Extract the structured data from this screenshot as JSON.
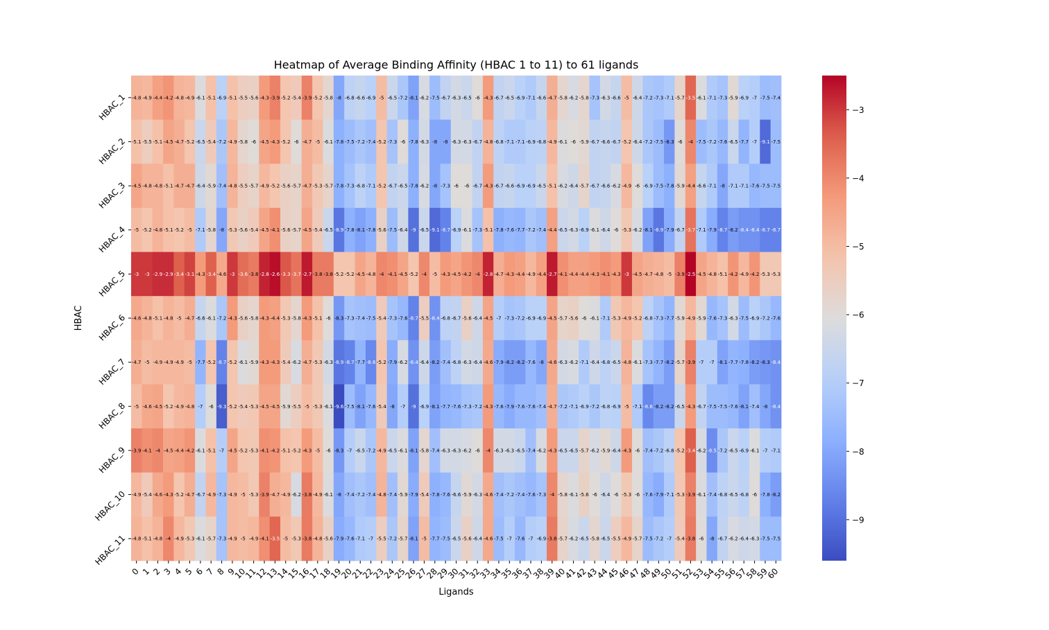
{
  "chart_data": {
    "type": "heatmap",
    "title": "Heatmap of Average Binding Affinity (HBAC 1 to 11) to 61 ligands",
    "xlabel": "Ligands",
    "ylabel": "HBAC",
    "rows": [
      "HBAC_1",
      "HBAC_2",
      "HBAC_3",
      "HBAC_4",
      "HBAC_5",
      "HBAC_6",
      "HBAC_7",
      "HBAC_8",
      "HBAC_9",
      "HBAC_10",
      "HBAC_11"
    ],
    "columns": [
      "0",
      "1",
      "2",
      "3",
      "4",
      "5",
      "6",
      "7",
      "8",
      "9",
      "10",
      "11",
      "12",
      "13",
      "14",
      "15",
      "16",
      "17",
      "18",
      "19",
      "20",
      "21",
      "22",
      "23",
      "24",
      "25",
      "26",
      "27",
      "28",
      "29",
      "30",
      "31",
      "32",
      "33",
      "34",
      "35",
      "36",
      "37",
      "38",
      "39",
      "40",
      "41",
      "42",
      "43",
      "44",
      "45",
      "46",
      "47",
      "48",
      "49",
      "50",
      "51",
      "52",
      "53",
      "54",
      "55",
      "56",
      "57",
      "58",
      "59",
      "60"
    ],
    "values": [
      [
        -4.8,
        -4.9,
        -4.4,
        -4.2,
        -4.8,
        -4.9,
        -6.1,
        -5.1,
        -6.9,
        -5.1,
        -5.5,
        -5.6,
        -4.3,
        -3.9,
        -5.2,
        -5.4,
        -3.9,
        -5.2,
        -5.8,
        -8,
        -6.8,
        -6.6,
        -6.9,
        -5,
        -6.5,
        -7.2,
        -8.1,
        -6.2,
        -7.5,
        -6.7,
        -6.3,
        -6.5,
        -6,
        -4.3,
        -6.7,
        -6.5,
        -6.9,
        -7.1,
        -6.6,
        -4.7,
        -5.8,
        -6.2,
        -5.8,
        -7.3,
        -6.3,
        -6.6,
        -5,
        -6.4,
        -7.2,
        -7.3,
        -7.1,
        -5.7,
        -3.5,
        -6.1,
        -7.1,
        -7.3,
        -5.9,
        -6.9,
        -7,
        -7.5,
        -7.4
      ],
      [
        -5.1,
        -5.5,
        -5.1,
        -4.5,
        -4.7,
        -5.2,
        -6.5,
        -5.4,
        -7.2,
        -4.9,
        -5.8,
        -6,
        -4.5,
        -4.3,
        -5.2,
        -6,
        -4.7,
        -5,
        -6.1,
        -7.8,
        -7.5,
        -7.2,
        -7.4,
        -5.2,
        -7.3,
        -6,
        -7.8,
        -6.3,
        -8,
        -8,
        -6.3,
        -6.3,
        -6.7,
        -4.8,
        -6.8,
        -7.1,
        -7.1,
        -6.9,
        -6.8,
        -4.9,
        -6.1,
        -6,
        -5.9,
        -6.7,
        -6.6,
        -6.7,
        -5.2,
        -6.4,
        -7.2,
        -7.5,
        -8.3,
        -6,
        -4,
        -7.5,
        -7.2,
        -7.6,
        -6.5,
        -7.7,
        -7,
        -9.1,
        -7.5
      ],
      [
        -4.5,
        -4.8,
        -4.8,
        -5.1,
        -4.7,
        -4.7,
        -6.4,
        -5.9,
        -7.4,
        -4.8,
        -5.5,
        -5.7,
        -4.9,
        -5.2,
        -5.6,
        -5.7,
        -4.7,
        -5.3,
        -5.7,
        -7.8,
        -7.3,
        -6.8,
        -7.1,
        -5.2,
        -6.7,
        -6.5,
        -7.8,
        -6.2,
        -8,
        -7.3,
        -6,
        -6,
        -6.7,
        -4.3,
        -6.7,
        -6.6,
        -6.9,
        -6.9,
        -6.5,
        -5.1,
        -6.2,
        -6.4,
        -5.7,
        -6.7,
        -6.6,
        -6.2,
        -4.9,
        -6,
        -6.9,
        -7.5,
        -7.8,
        -5.9,
        -4.4,
        -6.6,
        -7.1,
        -8,
        -7.1,
        -7.1,
        -7.6,
        -7.5,
        -7.5
      ],
      [
        -5,
        -5.2,
        -4.8,
        -5.1,
        -5.2,
        -5,
        -7.1,
        -5.8,
        -8,
        -5.3,
        -5.6,
        -5.4,
        -4.5,
        -4.1,
        -5.6,
        -5.7,
        -4.5,
        -5.4,
        -6.5,
        -8.9,
        -7.8,
        -8.1,
        -7.8,
        -5.6,
        -7.5,
        -6.4,
        -9,
        -6.5,
        -9.1,
        -8.7,
        -6.9,
        -6.1,
        -7.3,
        -5.1,
        -7.8,
        -7.6,
        -7.7,
        -7.2,
        -7.4,
        -4.4,
        -6.5,
        -6.3,
        -6.9,
        -6.1,
        -6.4,
        -6,
        -5.3,
        -6.2,
        -8.1,
        -8.9,
        -7.9,
        -6.7,
        -3.7,
        -7.1,
        -7.9,
        -8.7,
        -8.2,
        -8.4,
        -8.4,
        -8.7,
        -8.7
      ],
      [
        -3,
        -3,
        -2.9,
        -2.9,
        -3.4,
        -3.1,
        -4.3,
        -3.4,
        -4.6,
        -3,
        -3.6,
        -3.8,
        -2.8,
        -2.6,
        -3.3,
        -3.7,
        -2.7,
        -3.8,
        -3.8,
        -5.2,
        -5.2,
        -4.5,
        -4.8,
        -4,
        -4.1,
        -4.5,
        -5.2,
        -4,
        -5,
        -4.3,
        -4.5,
        -4.2,
        -4,
        -2.8,
        -4.7,
        -4.3,
        -4.4,
        -4.9,
        -4.4,
        -2.7,
        -4.1,
        -4.4,
        -4.4,
        -4.3,
        -4.1,
        -4.3,
        -3,
        -4.5,
        -4.7,
        -4.8,
        -5,
        -3.9,
        -2.5,
        -4.5,
        -4.8,
        -5.1,
        -4.2,
        -4.9,
        -4.2,
        -5.3,
        -5.3
      ],
      [
        -4.6,
        -4.8,
        -5.1,
        -4.8,
        -5,
        -4.7,
        -6.6,
        -6.1,
        -7.2,
        -4.3,
        -5.6,
        -5.8,
        -4.3,
        -4.4,
        -5.3,
        -5.8,
        -4.3,
        -5.1,
        -6,
        -8.3,
        -7.3,
        -7.4,
        -7.5,
        -5.4,
        -7.3,
        -7.6,
        -8.7,
        -5.5,
        -8.4,
        -6.8,
        -6.7,
        -5.6,
        -6.4,
        -4.5,
        -7,
        -7.3,
        -7.2,
        -6.9,
        -6.9,
        -4.5,
        -5.7,
        -5.6,
        -6,
        -6.1,
        -7.1,
        -5.3,
        -4.9,
        -5.2,
        -6.8,
        -7.3,
        -7.7,
        -5.9,
        -4.9,
        -5.9,
        -7.6,
        -7.3,
        -6.3,
        -7.5,
        -6.9,
        -7.2,
        -7.6
      ],
      [
        -4.7,
        -5,
        -4.9,
        -4.9,
        -4.9,
        -5,
        -7.7,
        -5.2,
        -8.7,
        -5.2,
        -6.1,
        -5.9,
        -4.3,
        -4.3,
        -5.4,
        -6.2,
        -4.7,
        -5.3,
        -6.3,
        -8.9,
        -8.7,
        -7.7,
        -8.6,
        -5.2,
        -7.9,
        -6.2,
        -8.4,
        -6.4,
        -8.2,
        -7.4,
        -6.8,
        -6.3,
        -6.4,
        -4.6,
        -7.9,
        -8.2,
        -8.2,
        -7.6,
        -8,
        -4.6,
        -6.3,
        -6.2,
        -7.1,
        -6.4,
        -6.8,
        -6.5,
        -4.8,
        -6.1,
        -7.3,
        -7.7,
        -8.2,
        -5.7,
        -3.9,
        -7,
        -7,
        -8.1,
        -7.7,
        -7.8,
        -8.2,
        -8.3,
        -8.4
      ],
      [
        -5,
        -4.6,
        -4.5,
        -5.2,
        -4.9,
        -4.8,
        -7,
        -6,
        -9.3,
        -5.2,
        -5.4,
        -5.3,
        -4.5,
        -4.5,
        -5.9,
        -5.5,
        -5,
        -5.3,
        -6.1,
        -9.6,
        -7.5,
        -8.1,
        -7.6,
        -5.4,
        -8,
        -7,
        -9,
        -6.9,
        -8.1,
        -7.7,
        -7.6,
        -7.3,
        -7.2,
        -4.3,
        -7.6,
        -7.9,
        -7.6,
        -7.6,
        -7.4,
        -4.7,
        -7.2,
        -7.1,
        -6.9,
        -7.2,
        -6.8,
        -6.9,
        -5,
        -7.1,
        -8.6,
        -8.2,
        -8.2,
        -6.5,
        -4.3,
        -6.7,
        -7.5,
        -7.5,
        -7.6,
        -8.1,
        -7.4,
        -8,
        -8.4
      ],
      [
        -3.9,
        -4.1,
        -4,
        -4.5,
        -4.4,
        -4.2,
        -6.1,
        -5.1,
        -7,
        -4.5,
        -5.2,
        -5.3,
        -4.1,
        -4.2,
        -5.1,
        -5.2,
        -4.3,
        -5,
        -6,
        -8.3,
        -7,
        -6.5,
        -7.2,
        -4.9,
        -6.5,
        -6.1,
        -8.1,
        -5.8,
        -7.4,
        -6.3,
        -6.3,
        -6.2,
        -6,
        -4,
        -6.3,
        -6.3,
        -6.5,
        -7.4,
        -6.2,
        -4.3,
        -6.5,
        -6.5,
        -5.7,
        -6.2,
        -5.9,
        -6.4,
        -4.3,
        -6,
        -7.4,
        -7.2,
        -6.8,
        -5.2,
        -3.4,
        -6.2,
        -8.5,
        -7.2,
        -6.5,
        -6.9,
        -6.1,
        -7,
        -7.1
      ],
      [
        -4.9,
        -5.4,
        -4.6,
        -4.3,
        -5.2,
        -4.7,
        -6.7,
        -4.9,
        -7.3,
        -4.9,
        -5,
        -5.3,
        -3.9,
        -4.7,
        -4.9,
        -6.2,
        -3.8,
        -4.9,
        -6.1,
        -8,
        -7.4,
        -7.2,
        -7.4,
        -4.8,
        -7.4,
        -5.9,
        -7.9,
        -5.4,
        -7.8,
        -7.6,
        -6.6,
        -5.9,
        -6.3,
        -4.6,
        -7.4,
        -7.2,
        -7.4,
        -7.6,
        -7.3,
        -4,
        -5.8,
        -6.1,
        -5.6,
        -6,
        -6.4,
        -6,
        -5.3,
        -6,
        -7.6,
        -7.9,
        -7.1,
        -5.3,
        -3.9,
        -6.1,
        -7.4,
        -6.8,
        -6.5,
        -6.8,
        -6,
        -7.8,
        -8.2
      ],
      [
        -4.8,
        -5.1,
        -4.8,
        -4,
        -4.9,
        -5.3,
        -6.1,
        -5.7,
        -7.3,
        -4.9,
        -5,
        -4.9,
        -4.1,
        -3.5,
        -5,
        -5.3,
        -3.8,
        -4.8,
        -5.6,
        -7.9,
        -7.6,
        -7.1,
        -7,
        -5.5,
        -7.2,
        -5.7,
        -8.1,
        -5,
        -7.7,
        -7.5,
        -6.5,
        -5.6,
        -6.4,
        -4.6,
        -7.5,
        -7,
        -7.6,
        -7,
        -6.9,
        -3.8,
        -5.7,
        -6.2,
        -6.5,
        -5.8,
        -6.5,
        -5.5,
        -4.9,
        -5.7,
        -7.5,
        -7.2,
        -7,
        -5.4,
        -3.8,
        -6,
        -8,
        -6.7,
        -6.2,
        -6.4,
        -6.3,
        -7.5,
        -7.5
      ]
    ],
    "colorbar": {
      "ticks": [
        -3,
        -4,
        -5,
        -6,
        -7,
        -8,
        -9
      ],
      "range": [
        -9.6,
        -2.5
      ],
      "colormap": "coolwarm"
    }
  }
}
